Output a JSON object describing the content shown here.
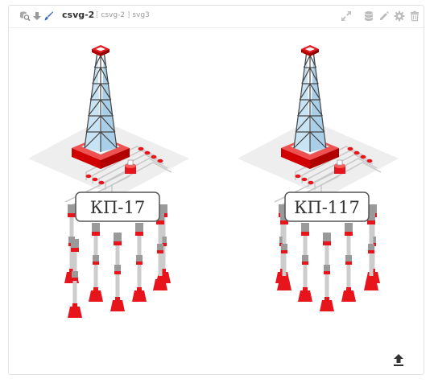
{
  "widget": {
    "title": "csvg-2",
    "subtitle": {
      "bracket_open": "[",
      "alias": "csvg-2",
      "bracket_close": "]",
      "source": "svg3"
    },
    "left_icons": [
      "dataset-search-icon",
      "download-icon",
      "brush-icon"
    ],
    "right_icons": [
      "fullscreen-icon",
      "database-icon",
      "edit-icon",
      "settings-icon",
      "delete-icon"
    ],
    "footer_icon": "upload-icon"
  },
  "towers": [
    {
      "label": "КП-17"
    },
    {
      "label": "КП-117"
    }
  ],
  "colors": {
    "accent_red": "#e8141c",
    "tower_glass": "#c8e4f4",
    "tower_frame": "#444444",
    "pad": "#eeeeee",
    "icon_gray": "#c2c2c2"
  }
}
